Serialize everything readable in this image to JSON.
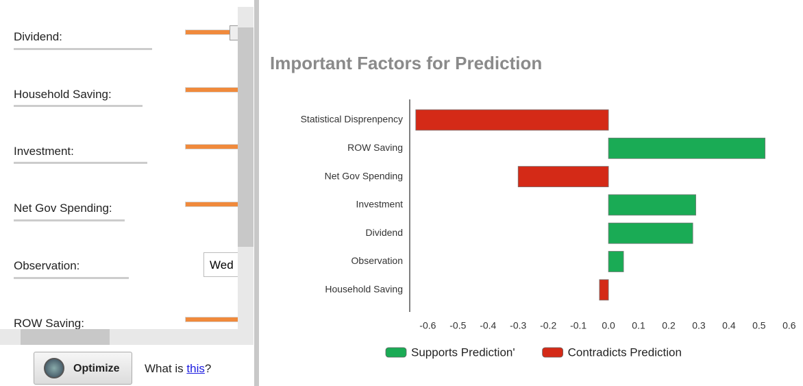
{
  "sidebar": {
    "fields": [
      "Dividend:",
      "Household Saving:",
      "Investment:",
      "Net Gov Spending:",
      "Observation:",
      "ROW Saving:"
    ],
    "observation_value": "Wed",
    "button": "Optimize",
    "help_text": "What is ",
    "help_link": "this",
    "help_end": "?"
  },
  "chart_data": {
    "type": "bar",
    "orientation": "horizontal",
    "title": "Important Factors for Prediction",
    "categories": [
      "Statistical Disprenpency",
      "ROW Saving",
      "Net Gov Spending",
      "Investment",
      "Dividend",
      "Observation",
      "Household Saving"
    ],
    "series": [
      {
        "name": "Supports Prediction'",
        "color": "#1aab55",
        "values": [
          null,
          0.52,
          null,
          0.29,
          0.28,
          0.05,
          null
        ]
      },
      {
        "name": "Contradicts Prediction",
        "color": "#d42a17",
        "values": [
          -0.64,
          null,
          -0.3,
          null,
          null,
          null,
          -0.03
        ]
      }
    ],
    "xlim": [
      -0.66,
      0.63
    ],
    "xticks": [
      -0.6,
      -0.5,
      -0.4,
      -0.3,
      -0.2,
      -0.1,
      {
        "value": 0,
        "label": "0.0"
      },
      0.1,
      0.2,
      0.3,
      0.4,
      0.5,
      0.6
    ],
    "grid": false,
    "legend": "bottom"
  }
}
